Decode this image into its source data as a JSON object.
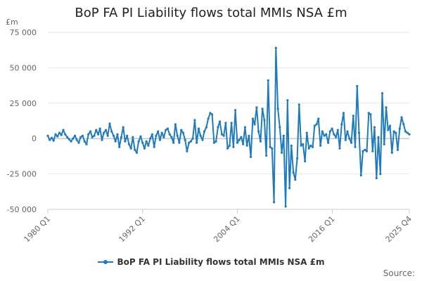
{
  "chart_data": {
    "type": "line",
    "title": "BoP FA PI Liability flows total MMIs NSA £m",
    "ylabel": "£m",
    "xlabel": "",
    "ylim": [
      -50000,
      75000
    ],
    "yticks": [
      75000,
      50000,
      25000,
      0,
      -25000,
      -50000
    ],
    "ytick_labels": [
      "75 000",
      "50 000",
      "25 000",
      "0",
      "-25 000",
      "-50 000"
    ],
    "x_start": "1980 Q1",
    "x_end": "2025 Q4",
    "xticks": [
      "1980 Q1",
      "1992 Q1",
      "2004 Q1",
      "2016 Q1",
      "2025 Q4"
    ],
    "grid": "horizontal",
    "legend": "bottom-center",
    "series": [
      {
        "name": "BoP FA PI Liability flows total MMIs NSA £m",
        "color": "#1f7bbd",
        "values": [
          2000,
          -1000,
          500,
          -1500,
          3000,
          1500,
          4000,
          2500,
          6000,
          3000,
          1000,
          -500,
          -2000,
          0,
          2000,
          -1000,
          -3000,
          1000,
          2000,
          -2000,
          -4000,
          3000,
          5000,
          1000,
          2000,
          6000,
          3000,
          7000,
          -1000,
          4000,
          6000,
          2000,
          10500,
          5000,
          2000,
          -2000,
          3000,
          -6000,
          1000,
          8000,
          -2000,
          2000,
          -4000,
          -7000,
          1000,
          -8000,
          -10000,
          -2000,
          1500,
          -3000,
          -7000,
          -2000,
          -5000,
          0,
          3000,
          -6000,
          2000,
          5000,
          -1000,
          4000,
          1000,
          6000,
          7000,
          3000,
          1000,
          -3000,
          10000,
          2000,
          -3000,
          6000,
          4000,
          -1000,
          -9000,
          -3000,
          -2000,
          0,
          13000,
          -3000,
          7000,
          2000,
          -1000,
          5000,
          8000,
          14000,
          18000,
          17000,
          -3000,
          -2000,
          8000,
          12000,
          3000,
          2000,
          11000,
          -7000,
          -5000,
          11000,
          -6000,
          20000,
          -3000,
          -1000,
          1000,
          -4000,
          8000,
          -5000,
          2000,
          -13000,
          14000,
          10000,
          22000,
          5000,
          -2000,
          21000,
          13000,
          -12000,
          41000,
          -6000,
          -7000,
          -45000,
          64000,
          21000,
          8000,
          -10000,
          2000,
          -48000,
          27000,
          -35000,
          -5000,
          -24000,
          -29000,
          -14000,
          24000,
          -5000,
          -4000,
          -16000,
          4000,
          -7000,
          -5000,
          -6000,
          9000,
          10000,
          14000,
          -5000,
          5000,
          2000,
          3000,
          -3000,
          5000,
          7000,
          3000,
          1000,
          6000,
          -7000,
          10000,
          18000,
          -1000,
          5000,
          0,
          -3000,
          16000,
          -6000,
          37000,
          4000,
          -26000,
          -9000,
          -8000,
          -9000,
          18000,
          17000,
          -9000,
          8000,
          -28000,
          1000,
          -25000,
          32000,
          -4000,
          22000,
          6000,
          9000,
          -10000,
          5000,
          4000,
          -8000,
          7000,
          15000,
          10000,
          5000,
          4000,
          3000
        ]
      }
    ]
  },
  "legend": {
    "label": "BoP FA PI Liability flows total MMIs NSA £m"
  },
  "source": {
    "label": "Source:"
  }
}
